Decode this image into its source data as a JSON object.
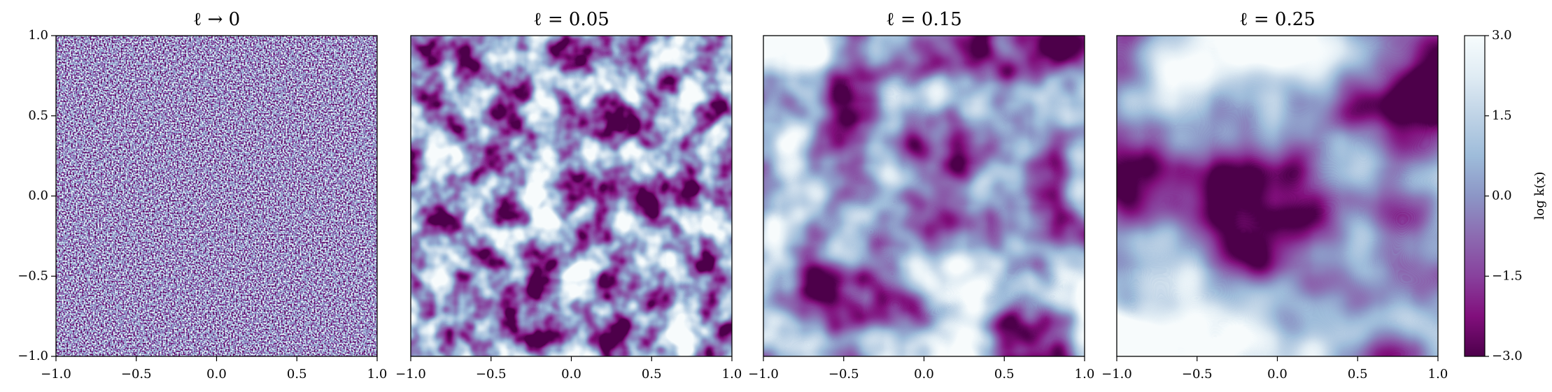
{
  "chart_data": {
    "type": "heatmap",
    "panels": [
      {
        "title": "ℓ → 0"
      },
      {
        "title": "ℓ = 0.05"
      },
      {
        "title": "ℓ = 0.15"
      },
      {
        "title": "ℓ = 0.25"
      }
    ],
    "xlim": [
      -1,
      1
    ],
    "xticks": [
      {
        "value": -1,
        "label": "−1.0"
      },
      {
        "value": -0.5,
        "label": "−0.5"
      },
      {
        "value": 0,
        "label": "0.0"
      },
      {
        "value": 0.5,
        "label": "0.5"
      },
      {
        "value": 1,
        "label": "1.0"
      }
    ],
    "ylim": [
      -1,
      1
    ],
    "yticks": [
      {
        "value": -1,
        "label": "−1.0"
      },
      {
        "value": -0.5,
        "label": "−0.5"
      },
      {
        "value": 0,
        "label": "0.0"
      },
      {
        "value": 0.5,
        "label": "0.5"
      },
      {
        "value": 1,
        "label": "1.0"
      }
    ],
    "colorbar": {
      "label": "log k(x)",
      "lim": [
        -3,
        3
      ],
      "ticks": [
        {
          "value": -3,
          "label": "−3.0"
        },
        {
          "value": -1.5,
          "label": "−1.5"
        },
        {
          "value": 0,
          "label": "0.0"
        },
        {
          "value": 1.5,
          "label": "1.5"
        },
        {
          "value": 3,
          "label": "3.0"
        }
      ],
      "colors": [
        "#4d004b",
        "#810f7c",
        "#88419d",
        "#8c6bb1",
        "#8c96c6",
        "#9ebcda",
        "#bfd3e6",
        "#e0ecf4",
        "#f7fcfd"
      ]
    }
  }
}
